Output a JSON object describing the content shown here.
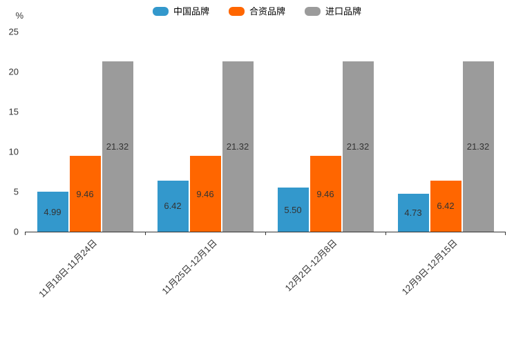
{
  "chart_data": {
    "type": "bar",
    "title": "",
    "categories": [
      "11月18日-11月24日",
      "11月25日-12月1日",
      "12月2日-12月8日",
      "12月9日-12月15日"
    ],
    "series": [
      {
        "name": "中国品牌",
        "color": "#3398CC",
        "values": [
          4.99,
          6.42,
          5.5,
          4.73
        ]
      },
      {
        "name": "合资品牌",
        "color": "#FF6600",
        "values": [
          9.46,
          9.46,
          9.46,
          6.42
        ]
      },
      {
        "name": "进口品牌",
        "color": "#9B9B9B",
        "values": [
          21.32,
          21.32,
          21.32,
          21.32
        ]
      }
    ],
    "ylabel": "%",
    "xlabel": "",
    "ylim": [
      0,
      25
    ],
    "yticks": [
      0,
      5,
      10,
      15,
      20,
      25
    ],
    "grid": false,
    "legend_position": "top",
    "value_labels": true,
    "value_label_format": "2dp",
    "colors": {
      "axis": "#333333",
      "text": "#333333",
      "background": "#FFFFFF"
    }
  }
}
